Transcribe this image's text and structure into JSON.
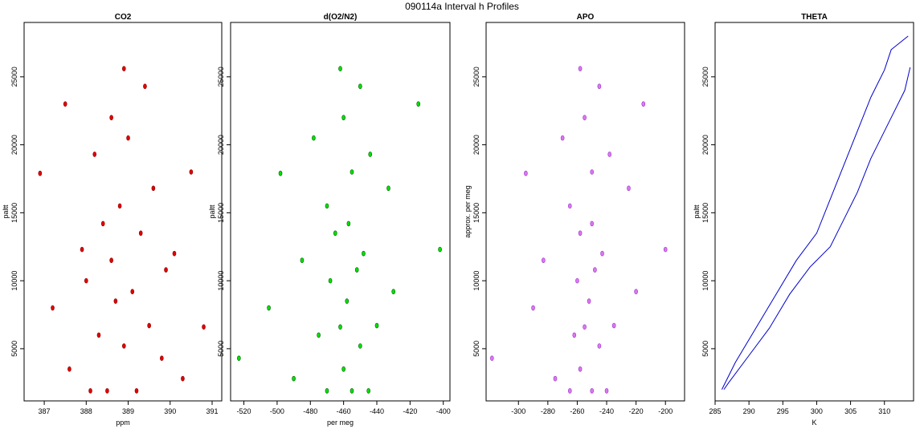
{
  "title": "090114a   Interval h Profiles",
  "chart_data": [
    {
      "type": "scatter",
      "title": "CO2",
      "xlabel": "ppm",
      "ylabel": "paltt",
      "color": "#e00000",
      "stroke": "#900000",
      "xlim": [
        386.52,
        391.23
      ],
      "ylim": [
        1160,
        29000
      ],
      "xticks": [
        387,
        388,
        389,
        390,
        391
      ],
      "yticks": [
        5000,
        10000,
        15000,
        20000,
        25000
      ],
      "x": [
        388.5,
        389.2,
        388.1,
        390.3,
        387.6,
        389.8,
        388.9,
        388.3,
        389.5,
        390.8,
        387.2,
        388.7,
        389.1,
        388.0,
        389.9,
        388.6,
        390.1,
        387.9,
        389.3,
        388.4,
        388.8,
        389.6,
        386.9,
        390.5,
        388.2,
        389.0,
        388.6,
        387.5,
        389.4,
        388.9
      ],
      "y": [
        1900,
        1900,
        1900,
        2800,
        3500,
        4300,
        5200,
        6000,
        6700,
        6600,
        8000,
        8500,
        9200,
        10000,
        10800,
        11500,
        12000,
        12300,
        13500,
        14200,
        15500,
        16800,
        17900,
        18000,
        19300,
        20500,
        22000,
        23000,
        24300,
        25600
      ]
    },
    {
      "type": "scatter",
      "title": "d(O2/N2)",
      "xlabel": "per meg",
      "ylabel": "paltt",
      "color": "#00e000",
      "stroke": "#006000",
      "xlim": [
        -528,
        -396
      ],
      "ylim": [
        1160,
        29000
      ],
      "xticks": [
        -520,
        -500,
        -480,
        -460,
        -440,
        -420,
        -400
      ],
      "yticks": [
        5000,
        10000,
        15000,
        20000,
        25000
      ],
      "x": [
        -470,
        -455,
        -445,
        -490,
        -460,
        -523,
        -450,
        -475,
        -440,
        -462,
        -505,
        -458,
        -430,
        -468,
        -452,
        -485,
        -448,
        -402,
        -465,
        -457,
        -470,
        -433,
        -498,
        -455,
        -444,
        -478,
        -460,
        -415,
        -450,
        -462
      ],
      "y": [
        1900,
        1900,
        1900,
        2800,
        3500,
        4300,
        5200,
        6000,
        6700,
        6600,
        8000,
        8500,
        9200,
        10000,
        10800,
        11500,
        12000,
        12300,
        13500,
        14200,
        15500,
        16800,
        17900,
        18000,
        19300,
        20500,
        22000,
        23000,
        24300,
        25600
      ]
    },
    {
      "type": "scatter",
      "title": "APO",
      "ylabel": "approx. per meg",
      "color": "#dd77ee",
      "stroke": "#9933cc",
      "xlim": [
        -322,
        -187
      ],
      "ylim": [
        1160,
        29000
      ],
      "xticks": [
        -300,
        -280,
        -260,
        -240,
        -220,
        -200
      ],
      "yticks": [
        5000,
        10000,
        15000,
        20000,
        25000
      ],
      "x": [
        -265,
        -250,
        -240,
        -275,
        -258,
        -318,
        -245,
        -262,
        -235,
        -255,
        -290,
        -252,
        -220,
        -260,
        -248,
        -283,
        -243,
        -200,
        -258,
        -250,
        -265,
        -225,
        -295,
        -250,
        -238,
        -270,
        -255,
        -215,
        -245,
        -258
      ],
      "y": [
        1900,
        1900,
        1900,
        2800,
        3500,
        4300,
        5200,
        6000,
        6700,
        6600,
        8000,
        8500,
        9200,
        10000,
        10800,
        11500,
        12000,
        12300,
        13500,
        14200,
        15500,
        16800,
        17900,
        18000,
        19300,
        20500,
        22000,
        23000,
        24300,
        25600
      ]
    },
    {
      "type": "line",
      "title": "THETA",
      "xlabel": "K",
      "ylabel": "paltt",
      "color": "#0000cc",
      "xlim": [
        285,
        314.3
      ],
      "ylim": [
        1160,
        29000
      ],
      "xticks": [
        285,
        290,
        295,
        300,
        305,
        310
      ],
      "yticks": [
        5000,
        10000,
        15000,
        20000,
        25000
      ],
      "series": [
        {
          "x": [
            286,
            288,
            291,
            294,
            297,
            300,
            302,
            304,
            306,
            308,
            310,
            311,
            313.5
          ],
          "y": [
            2000,
            4000,
            6500,
            9000,
            11500,
            13500,
            16000,
            18500,
            21000,
            23500,
            25500,
            27000,
            28000
          ]
        },
        {
          "x": [
            313.8,
            313,
            311,
            308,
            306,
            304,
            302,
            299,
            296,
            293,
            290,
            287,
            286.3
          ],
          "y": [
            25700,
            24000,
            22000,
            19000,
            16500,
            14500,
            12500,
            11000,
            9000,
            6500,
            4500,
            2500,
            2000
          ]
        }
      ]
    }
  ]
}
